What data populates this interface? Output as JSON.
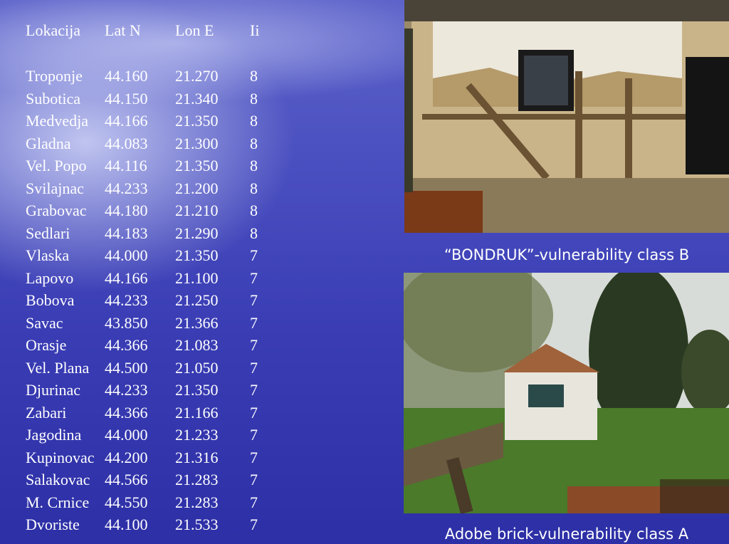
{
  "table": {
    "headers": [
      "Lokacija",
      "Lat N",
      "Lon E",
      "Ii"
    ],
    "rows": [
      [
        "Troponje",
        "44.160",
        "21.270",
        "8"
      ],
      [
        "Subotica",
        "44.150",
        "21.340",
        "8"
      ],
      [
        "Medvedja",
        "44.166",
        "21.350",
        "8"
      ],
      [
        "Gladna",
        "44.083",
        "21.300",
        "8"
      ],
      [
        "Vel. Popo",
        "44.116",
        "21.350",
        "8"
      ],
      [
        "Svilajnac",
        "44.233",
        "21.200",
        "8"
      ],
      [
        "Grabovac",
        "44.180",
        "21.210",
        "8"
      ],
      [
        "Sedlari",
        "44.183",
        "21.290",
        "8"
      ],
      [
        "Vlaska",
        "44.000",
        "21.350",
        "7"
      ],
      [
        "Lapovo",
        "44.166",
        "21.100",
        "7"
      ],
      [
        "Bobova",
        "44.233",
        "21.250",
        "7"
      ],
      [
        "Savac",
        "43.850",
        "21.366",
        "7"
      ],
      [
        "Orasje",
        "44.366",
        "21.083",
        "7"
      ],
      [
        "Vel. Plana",
        "44.500",
        "21.050",
        "7"
      ],
      [
        "Djurinac",
        "44.233",
        "21.350",
        "7"
      ],
      [
        "Zabari",
        "44.366",
        "21.166",
        "7"
      ],
      [
        "Jagodina",
        "44.000",
        "21.233",
        "7"
      ],
      [
        "Kupinovac",
        "44.200",
        "21.316",
        "7"
      ],
      [
        "Salakovac",
        "44.566",
        "21.283",
        "7"
      ],
      [
        "M. Crnice",
        "44.550",
        "21.283",
        "7"
      ],
      [
        "Dvoriste",
        "44.100",
        "21.533",
        "7"
      ]
    ]
  },
  "photos": {
    "top_caption": "“BONDRUK”-vulnerability class B",
    "bottom_caption": "Adobe brick-vulnerability class A"
  }
}
